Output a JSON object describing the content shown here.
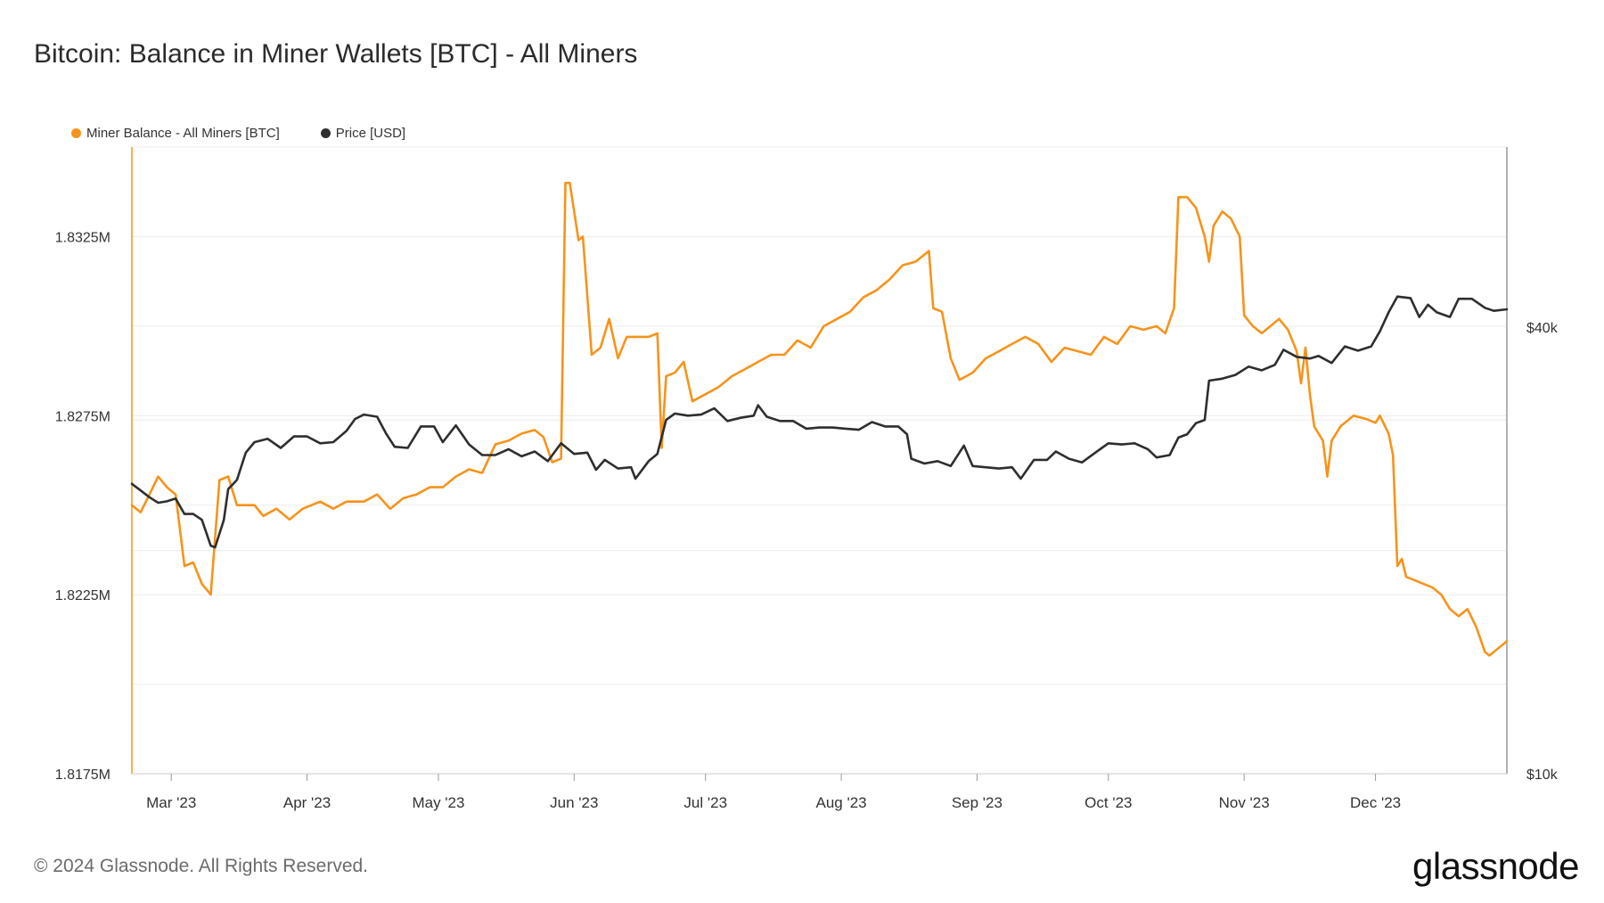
{
  "title": "Bitcoin: Balance in Miner Wallets [BTC] - All Miners",
  "footer": "© 2024 Glassnode. All Rights Reserved.",
  "brand": "glassnode",
  "colors": {
    "balance": "#F7931A",
    "price": "#2E2E2E",
    "grid": "#ECECEC",
    "axis": "#C8C8C8"
  },
  "chart_data": {
    "type": "line",
    "title": "Bitcoin: Balance in Miner Wallets [BTC] - All Miners",
    "x_ticks": [
      "Mar '23",
      "Apr '23",
      "May '23",
      "Jun '23",
      "Jul '23",
      "Aug '23",
      "Sep '23",
      "Oct '23",
      "Nov '23",
      "Dec '23"
    ],
    "x_range": [
      "2023-02-20",
      "2023-12-31"
    ],
    "left_axis": {
      "ticks": [
        "1.8175M",
        "1.8225M",
        "1.8275M",
        "1.8325M"
      ],
      "tick_values": [
        1.8175,
        1.8225,
        1.8275,
        1.8325
      ],
      "range": [
        1.8175,
        1.835
      ],
      "unit": "M BTC"
    },
    "right_axis": {
      "ticks": [
        "$10k",
        "$40k"
      ],
      "tick_values": [
        10000,
        40000
      ],
      "scale": "log",
      "range": [
        10000,
        70000
      ]
    },
    "grid": true,
    "legend_position": "top-left",
    "series": [
      {
        "name": "Miner Balance - All Miners [BTC]",
        "axis": "left",
        "color": "#F7931A",
        "points": [
          [
            "2023-02-20",
            1.825
          ],
          [
            "2023-02-22",
            1.8248
          ],
          [
            "2023-02-24",
            1.8253
          ],
          [
            "2023-02-26",
            1.8258
          ],
          [
            "2023-02-28",
            1.8255
          ],
          [
            "2023-03-02",
            1.8253
          ],
          [
            "2023-03-04",
            1.8233
          ],
          [
            "2023-03-06",
            1.8234
          ],
          [
            "2023-03-08",
            1.8228
          ],
          [
            "2023-03-10",
            1.8225
          ],
          [
            "2023-03-12",
            1.8257
          ],
          [
            "2023-03-14",
            1.8258
          ],
          [
            "2023-03-16",
            1.825
          ],
          [
            "2023-03-18",
            1.825
          ],
          [
            "2023-03-20",
            1.825
          ],
          [
            "2023-03-22",
            1.8247
          ],
          [
            "2023-03-25",
            1.8249
          ],
          [
            "2023-03-28",
            1.8246
          ],
          [
            "2023-03-31",
            1.8249
          ],
          [
            "2023-04-04",
            1.8251
          ],
          [
            "2023-04-07",
            1.8249
          ],
          [
            "2023-04-10",
            1.8251
          ],
          [
            "2023-04-14",
            1.8251
          ],
          [
            "2023-04-17",
            1.8253
          ],
          [
            "2023-04-20",
            1.8249
          ],
          [
            "2023-04-23",
            1.8252
          ],
          [
            "2023-04-26",
            1.8253
          ],
          [
            "2023-04-29",
            1.8255
          ],
          [
            "2023-05-02",
            1.8255
          ],
          [
            "2023-05-05",
            1.8258
          ],
          [
            "2023-05-08",
            1.826
          ],
          [
            "2023-05-11",
            1.8259
          ],
          [
            "2023-05-14",
            1.8267
          ],
          [
            "2023-05-17",
            1.8268
          ],
          [
            "2023-05-20",
            1.827
          ],
          [
            "2023-05-23",
            1.8271
          ],
          [
            "2023-05-25",
            1.8269
          ],
          [
            "2023-05-27",
            1.8262
          ],
          [
            "2023-05-29",
            1.8263
          ],
          [
            "2023-05-30",
            1.834
          ],
          [
            "2023-05-31",
            1.834
          ],
          [
            "2023-06-02",
            1.8324
          ],
          [
            "2023-06-03",
            1.8325
          ],
          [
            "2023-06-05",
            1.8292
          ],
          [
            "2023-06-07",
            1.8294
          ],
          [
            "2023-06-09",
            1.8302
          ],
          [
            "2023-06-11",
            1.8291
          ],
          [
            "2023-06-13",
            1.8297
          ],
          [
            "2023-06-16",
            1.8297
          ],
          [
            "2023-06-18",
            1.8297
          ],
          [
            "2023-06-20",
            1.8298
          ],
          [
            "2023-06-21",
            1.8266
          ],
          [
            "2023-06-22",
            1.8286
          ],
          [
            "2023-06-24",
            1.8287
          ],
          [
            "2023-06-26",
            1.829
          ],
          [
            "2023-06-28",
            1.8279
          ],
          [
            "2023-07-01",
            1.8281
          ],
          [
            "2023-07-04",
            1.8283
          ],
          [
            "2023-07-07",
            1.8286
          ],
          [
            "2023-07-10",
            1.8288
          ],
          [
            "2023-07-13",
            1.829
          ],
          [
            "2023-07-16",
            1.8292
          ],
          [
            "2023-07-19",
            1.8292
          ],
          [
            "2023-07-22",
            1.8296
          ],
          [
            "2023-07-25",
            1.8294
          ],
          [
            "2023-07-28",
            1.83
          ],
          [
            "2023-07-31",
            1.8302
          ],
          [
            "2023-08-03",
            1.8304
          ],
          [
            "2023-08-06",
            1.8308
          ],
          [
            "2023-08-09",
            1.831
          ],
          [
            "2023-08-12",
            1.8313
          ],
          [
            "2023-08-15",
            1.8317
          ],
          [
            "2023-08-18",
            1.8318
          ],
          [
            "2023-08-21",
            1.8321
          ],
          [
            "2023-08-22",
            1.8305
          ],
          [
            "2023-08-24",
            1.8304
          ],
          [
            "2023-08-26",
            1.8291
          ],
          [
            "2023-08-28",
            1.8285
          ],
          [
            "2023-08-31",
            1.8287
          ],
          [
            "2023-09-03",
            1.8291
          ],
          [
            "2023-09-06",
            1.8293
          ],
          [
            "2023-09-09",
            1.8295
          ],
          [
            "2023-09-12",
            1.8297
          ],
          [
            "2023-09-15",
            1.8295
          ],
          [
            "2023-09-18",
            1.829
          ],
          [
            "2023-09-21",
            1.8294
          ],
          [
            "2023-09-24",
            1.8293
          ],
          [
            "2023-09-27",
            1.8292
          ],
          [
            "2023-09-30",
            1.8297
          ],
          [
            "2023-10-03",
            1.8295
          ],
          [
            "2023-10-06",
            1.83
          ],
          [
            "2023-10-09",
            1.8299
          ],
          [
            "2023-10-12",
            1.83
          ],
          [
            "2023-10-14",
            1.8298
          ],
          [
            "2023-10-16",
            1.8305
          ],
          [
            "2023-10-17",
            1.8336
          ],
          [
            "2023-10-19",
            1.8336
          ],
          [
            "2023-10-21",
            1.8333
          ],
          [
            "2023-10-23",
            1.8325
          ],
          [
            "2023-10-24",
            1.8318
          ],
          [
            "2023-10-25",
            1.8328
          ],
          [
            "2023-10-27",
            1.8332
          ],
          [
            "2023-10-29",
            1.833
          ],
          [
            "2023-10-31",
            1.8325
          ],
          [
            "2023-11-01",
            1.8303
          ],
          [
            "2023-11-03",
            1.83
          ],
          [
            "2023-11-05",
            1.8298
          ],
          [
            "2023-11-07",
            1.83
          ],
          [
            "2023-11-09",
            1.8302
          ],
          [
            "2023-11-11",
            1.8299
          ],
          [
            "2023-11-13",
            1.8293
          ],
          [
            "2023-11-14",
            1.8284
          ],
          [
            "2023-11-15",
            1.8294
          ],
          [
            "2023-11-16",
            1.8281
          ],
          [
            "2023-11-17",
            1.8272
          ],
          [
            "2023-11-19",
            1.8268
          ],
          [
            "2023-11-20",
            1.8258
          ],
          [
            "2023-11-21",
            1.8268
          ],
          [
            "2023-11-23",
            1.8272
          ],
          [
            "2023-11-26",
            1.8275
          ],
          [
            "2023-11-29",
            1.8274
          ],
          [
            "2023-12-01",
            1.8273
          ],
          [
            "2023-12-02",
            1.8275
          ],
          [
            "2023-12-04",
            1.827
          ],
          [
            "2023-12-05",
            1.8264
          ],
          [
            "2023-12-06",
            1.8233
          ],
          [
            "2023-12-07",
            1.8235
          ],
          [
            "2023-12-08",
            1.823
          ],
          [
            "2023-12-10",
            1.8229
          ],
          [
            "2023-12-12",
            1.8228
          ],
          [
            "2023-12-14",
            1.8227
          ],
          [
            "2023-12-16",
            1.8225
          ],
          [
            "2023-12-18",
            1.8221
          ],
          [
            "2023-12-20",
            1.8219
          ],
          [
            "2023-12-22",
            1.8221
          ],
          [
            "2023-12-24",
            1.8216
          ],
          [
            "2023-12-26",
            1.8209
          ],
          [
            "2023-12-27",
            1.8208
          ],
          [
            "2023-12-29",
            1.821
          ],
          [
            "2023-12-31",
            1.8212
          ]
        ]
      },
      {
        "name": "Price [USD]",
        "axis": "right",
        "color": "#2E2E2E",
        "points": [
          [
            "2023-02-20",
            24600
          ],
          [
            "2023-02-22",
            24100
          ],
          [
            "2023-02-24",
            23600
          ],
          [
            "2023-02-26",
            23200
          ],
          [
            "2023-02-28",
            23300
          ],
          [
            "2023-03-02",
            23500
          ],
          [
            "2023-03-04",
            22400
          ],
          [
            "2023-03-06",
            22400
          ],
          [
            "2023-03-08",
            22000
          ],
          [
            "2023-03-10",
            20300
          ],
          [
            "2023-03-11",
            20200
          ],
          [
            "2023-03-13",
            22000
          ],
          [
            "2023-03-14",
            24200
          ],
          [
            "2023-03-16",
            24900
          ],
          [
            "2023-03-18",
            27100
          ],
          [
            "2023-03-20",
            28000
          ],
          [
            "2023-03-23",
            28300
          ],
          [
            "2023-03-26",
            27500
          ],
          [
            "2023-03-29",
            28500
          ],
          [
            "2023-04-01",
            28500
          ],
          [
            "2023-04-04",
            27900
          ],
          [
            "2023-04-07",
            28000
          ],
          [
            "2023-04-10",
            29000
          ],
          [
            "2023-04-12",
            30100
          ],
          [
            "2023-04-14",
            30500
          ],
          [
            "2023-04-17",
            30300
          ],
          [
            "2023-04-19",
            28800
          ],
          [
            "2023-04-21",
            27600
          ],
          [
            "2023-04-24",
            27500
          ],
          [
            "2023-04-27",
            29400
          ],
          [
            "2023-04-30",
            29400
          ],
          [
            "2023-05-02",
            28000
          ],
          [
            "2023-05-05",
            29500
          ],
          [
            "2023-05-08",
            27800
          ],
          [
            "2023-05-11",
            26900
          ],
          [
            "2023-05-14",
            26900
          ],
          [
            "2023-05-17",
            27400
          ],
          [
            "2023-05-20",
            26800
          ],
          [
            "2023-05-23",
            27200
          ],
          [
            "2023-05-26",
            26400
          ],
          [
            "2023-05-29",
            27900
          ],
          [
            "2023-06-01",
            27000
          ],
          [
            "2023-06-04",
            27100
          ],
          [
            "2023-06-06",
            25700
          ],
          [
            "2023-06-08",
            26500
          ],
          [
            "2023-06-11",
            25800
          ],
          [
            "2023-06-14",
            25900
          ],
          [
            "2023-06-15",
            25000
          ],
          [
            "2023-06-18",
            26400
          ],
          [
            "2023-06-20",
            27000
          ],
          [
            "2023-06-22",
            30000
          ],
          [
            "2023-06-24",
            30600
          ],
          [
            "2023-06-27",
            30400
          ],
          [
            "2023-06-30",
            30500
          ],
          [
            "2023-07-03",
            31100
          ],
          [
            "2023-07-06",
            29900
          ],
          [
            "2023-07-09",
            30200
          ],
          [
            "2023-07-12",
            30400
          ],
          [
            "2023-07-13",
            31400
          ],
          [
            "2023-07-15",
            30300
          ],
          [
            "2023-07-18",
            29900
          ],
          [
            "2023-07-21",
            29900
          ],
          [
            "2023-07-24",
            29200
          ],
          [
            "2023-07-27",
            29300
          ],
          [
            "2023-07-30",
            29300
          ],
          [
            "2023-08-02",
            29200
          ],
          [
            "2023-08-05",
            29100
          ],
          [
            "2023-08-08",
            29800
          ],
          [
            "2023-08-11",
            29400
          ],
          [
            "2023-08-14",
            29400
          ],
          [
            "2023-08-16",
            28700
          ],
          [
            "2023-08-17",
            26600
          ],
          [
            "2023-08-20",
            26200
          ],
          [
            "2023-08-23",
            26400
          ],
          [
            "2023-08-26",
            26000
          ],
          [
            "2023-08-29",
            27700
          ],
          [
            "2023-08-31",
            26000
          ],
          [
            "2023-09-03",
            25900
          ],
          [
            "2023-09-06",
            25800
          ],
          [
            "2023-09-09",
            25900
          ],
          [
            "2023-09-11",
            25000
          ],
          [
            "2023-09-14",
            26500
          ],
          [
            "2023-09-17",
            26500
          ],
          [
            "2023-09-19",
            27200
          ],
          [
            "2023-09-22",
            26600
          ],
          [
            "2023-09-25",
            26300
          ],
          [
            "2023-09-28",
            27100
          ],
          [
            "2023-10-01",
            27900
          ],
          [
            "2023-10-04",
            27800
          ],
          [
            "2023-10-07",
            27900
          ],
          [
            "2023-10-10",
            27400
          ],
          [
            "2023-10-12",
            26700
          ],
          [
            "2023-10-15",
            26900
          ],
          [
            "2023-10-17",
            28400
          ],
          [
            "2023-10-19",
            28700
          ],
          [
            "2023-10-21",
            29700
          ],
          [
            "2023-10-23",
            30000
          ],
          [
            "2023-10-24",
            33900
          ],
          [
            "2023-10-27",
            34100
          ],
          [
            "2023-10-30",
            34500
          ],
          [
            "2023-11-02",
            35400
          ],
          [
            "2023-11-05",
            35000
          ],
          [
            "2023-11-08",
            35600
          ],
          [
            "2023-11-10",
            37300
          ],
          [
            "2023-11-13",
            36500
          ],
          [
            "2023-11-16",
            36300
          ],
          [
            "2023-11-18",
            36600
          ],
          [
            "2023-11-21",
            35800
          ],
          [
            "2023-11-24",
            37700
          ],
          [
            "2023-11-27",
            37200
          ],
          [
            "2023-11-30",
            37700
          ],
          [
            "2023-12-02",
            39500
          ],
          [
            "2023-12-04",
            41900
          ],
          [
            "2023-12-06",
            44000
          ],
          [
            "2023-12-09",
            43800
          ],
          [
            "2023-12-11",
            41300
          ],
          [
            "2023-12-13",
            42900
          ],
          [
            "2023-12-15",
            41900
          ],
          [
            "2023-12-18",
            41300
          ],
          [
            "2023-12-20",
            43700
          ],
          [
            "2023-12-23",
            43700
          ],
          [
            "2023-12-26",
            42500
          ],
          [
            "2023-12-28",
            42100
          ],
          [
            "2023-12-31",
            42300
          ]
        ]
      }
    ]
  }
}
